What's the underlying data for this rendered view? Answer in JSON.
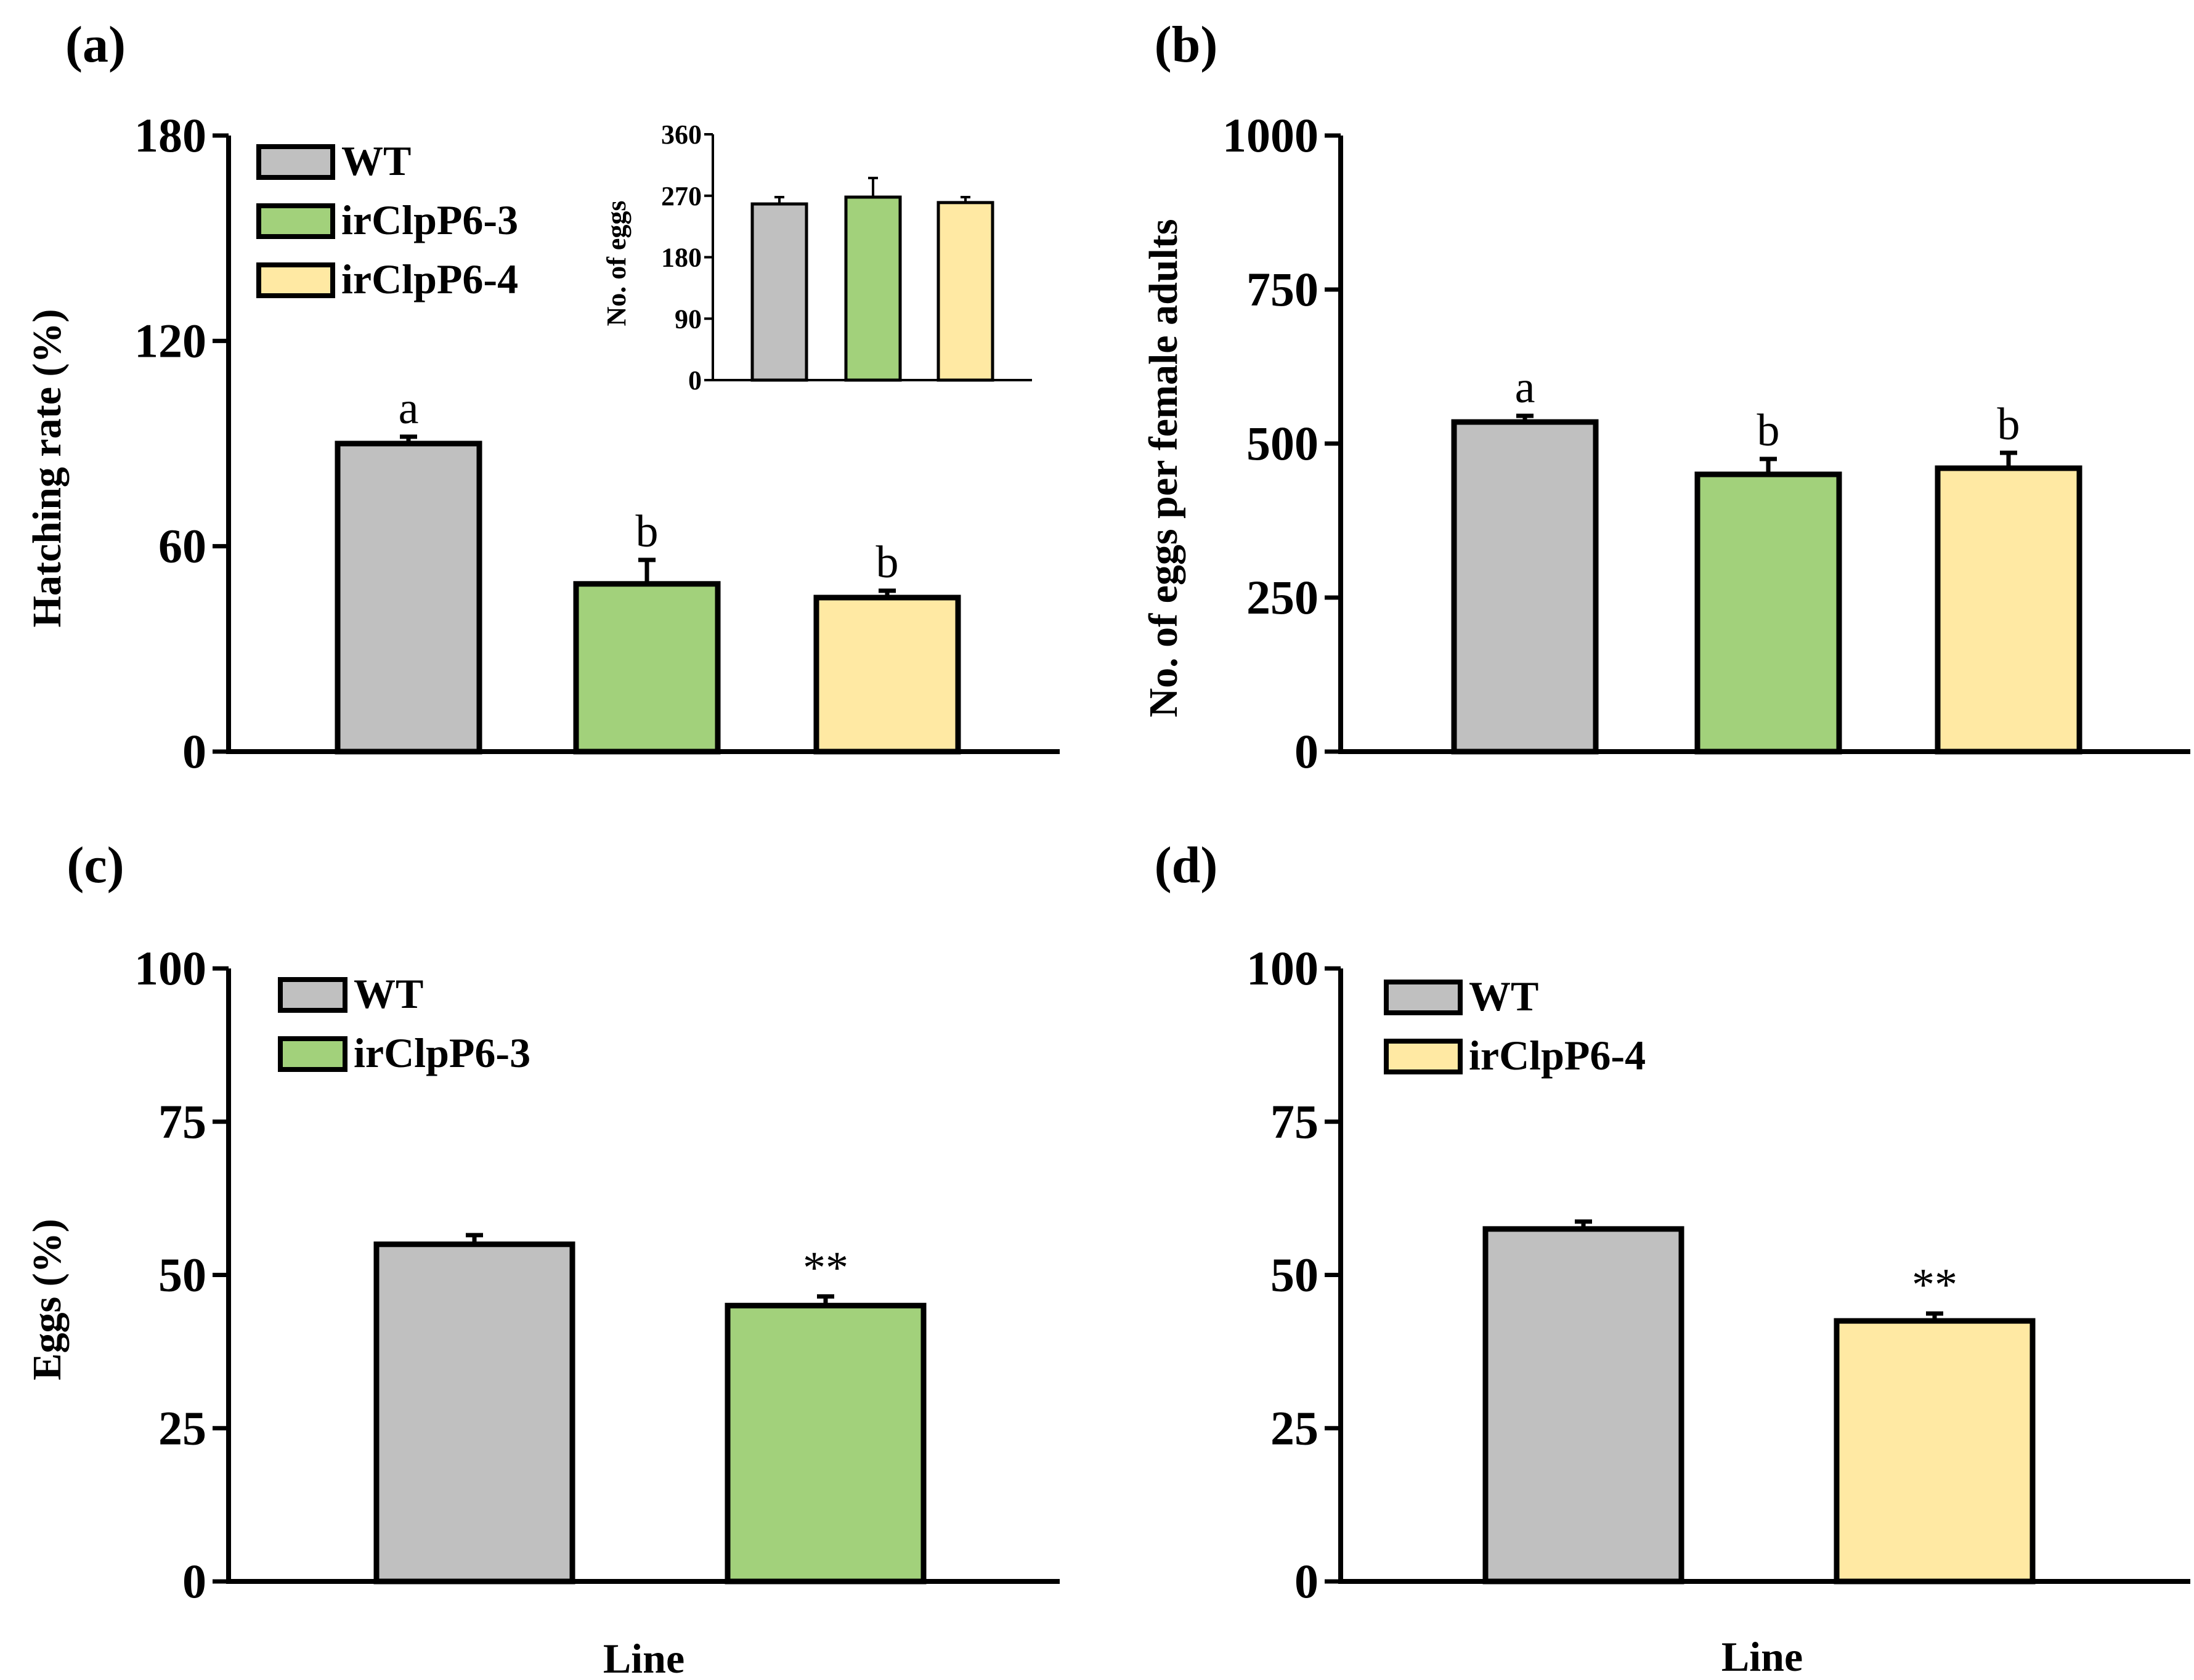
{
  "colors": {
    "WT": "#c0c0c0",
    "irClpP6-3": "#a2d17b",
    "irClpP6-4": "#ffe9a3",
    "axis": "#000000"
  },
  "chart_data": [
    {
      "panel": "(a)",
      "type": "bar",
      "categories": [
        "WT",
        "irClpP6-3",
        "irClpP6-4"
      ],
      "values": [
        90,
        49,
        45
      ],
      "errors": [
        2,
        7,
        2
      ],
      "significance": [
        "a",
        "b",
        "b"
      ],
      "title": "",
      "xlabel": "",
      "ylabel": "Hatching rate (%)",
      "ylim": [
        0,
        180
      ],
      "yticks": [
        0,
        60,
        120,
        180
      ],
      "legend": {
        "placement": "top-left",
        "entries": [
          "WT",
          "irClpP6-3",
          "irClpP6-4"
        ]
      },
      "inset": {
        "type": "bar",
        "categories": [
          "WT",
          "irClpP6-3",
          "irClpP6-4"
        ],
        "values": [
          258,
          268,
          260
        ],
        "errors": [
          10,
          28,
          8
        ],
        "ylabel": "No. of eggs",
        "ylim": [
          0,
          360
        ],
        "yticks": [
          0,
          90,
          180,
          270,
          360
        ]
      }
    },
    {
      "panel": "(b)",
      "type": "bar",
      "categories": [
        "WT",
        "irClpP6-3",
        "irClpP6-4"
      ],
      "values": [
        535,
        450,
        460
      ],
      "errors": [
        10,
        25,
        25
      ],
      "significance": [
        "a",
        "b",
        "b"
      ],
      "title": "",
      "xlabel": "",
      "ylabel": "No. of eggs per female adults",
      "ylim": [
        0,
        1000
      ],
      "yticks": [
        0,
        250,
        500,
        750,
        1000
      ]
    },
    {
      "panel": "(c)",
      "type": "bar",
      "categories": [
        "WT",
        "irClpP6-3"
      ],
      "values": [
        55,
        45
      ],
      "errors": [
        1.5,
        1.5
      ],
      "significance": [
        "",
        "**"
      ],
      "title": "",
      "xlabel": "Line",
      "ylabel": "Eggs (%)",
      "ylim": [
        0,
        100
      ],
      "yticks": [
        0,
        25,
        50,
        75,
        100
      ],
      "legend": {
        "placement": "top-left",
        "entries": [
          "WT",
          "irClpP6-3"
        ]
      }
    },
    {
      "panel": "(d)",
      "type": "bar",
      "categories": [
        "WT",
        "irClpP6-4"
      ],
      "values": [
        57.5,
        42.5
      ],
      "errors": [
        1.2,
        1.2
      ],
      "significance": [
        "",
        "**"
      ],
      "title": "",
      "xlabel": "Line",
      "ylabel": "",
      "ylim": [
        0,
        100
      ],
      "yticks": [
        0,
        25,
        50,
        75,
        100
      ],
      "legend": {
        "placement": "top-left",
        "entries": [
          "WT",
          "irClpP6-4"
        ]
      }
    }
  ]
}
